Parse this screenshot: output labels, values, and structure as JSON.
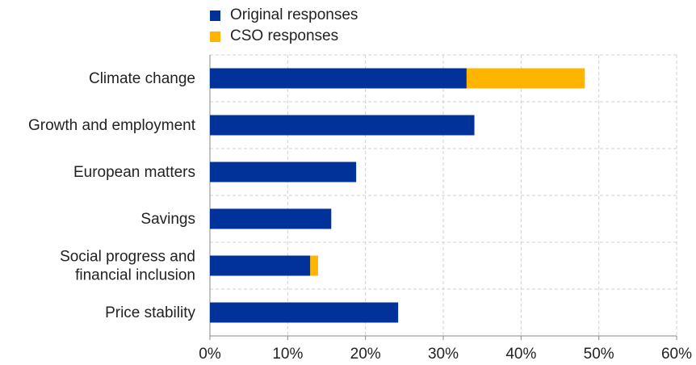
{
  "chart_data": {
    "type": "bar",
    "orientation": "horizontal",
    "stacked": true,
    "categories": [
      "Climate change",
      "Growth and employment",
      "European matters",
      "Savings",
      "Social progress and financial inclusion",
      "Price stability"
    ],
    "category_lines": [
      [
        "Climate change"
      ],
      [
        "Growth and employment"
      ],
      [
        "European matters"
      ],
      [
        "Savings"
      ],
      [
        "Social progress and",
        "financial inclusion"
      ],
      [
        "Price stability"
      ]
    ],
    "series": [
      {
        "name": "Original responses",
        "color": "#003299",
        "values": [
          33,
          34,
          18.8,
          15.6,
          12.9,
          24.2
        ]
      },
      {
        "name": "CSO responses",
        "color": "#FFB400",
        "values": [
          15.2,
          0,
          0,
          0,
          1.0,
          0
        ]
      }
    ],
    "xlim": [
      0,
      60
    ],
    "xticks": [
      "0%",
      "10%",
      "20%",
      "30%",
      "40%",
      "50%",
      "60%"
    ],
    "tick_values": [
      0,
      10,
      20,
      30,
      40,
      50,
      60
    ],
    "grid": true,
    "legend_position": "top-left"
  }
}
